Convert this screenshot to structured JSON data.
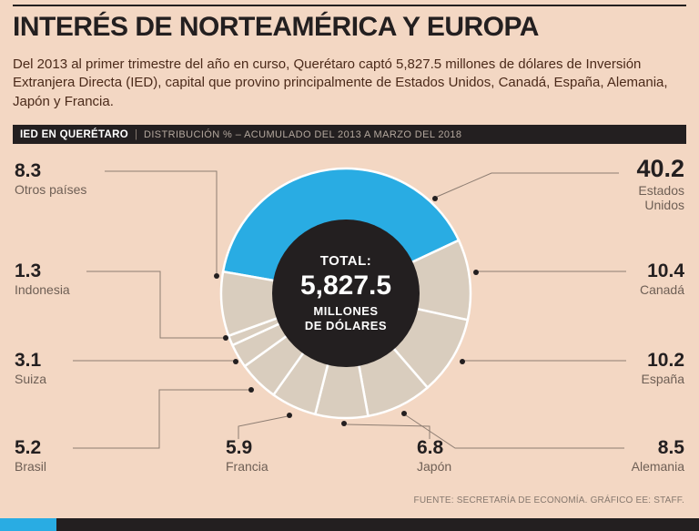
{
  "page": {
    "title": "INTERÉS DE NORTEAMÉRICA Y EUROPA",
    "intro": "Del 2013 al primer trimestre del año en curso, Querétaro captó 5,827.5 millones de dólares de Inversión Extranjera Directa (IED), capital que provino principalmente de Estados Unidos, Canadá, España, Alemania, Japón y Francia.",
    "source": "FUENTE: SECRETARÍA DE ECONOMÍA. GRÁFICO EE: STAFF."
  },
  "header_bar": {
    "label": "IED EN QUERÉTARO",
    "separator": "|",
    "subtitle": "DISTRIBUCIÓN % – ACUMULADO DEL 2013 A MARZO DEL 2018"
  },
  "chart_data": {
    "type": "pie",
    "title": "IED EN QUERÉTARO — DISTRIBUCIÓN % ACUMULADO DEL 2013 A MARZO DEL 2018",
    "unit": "%",
    "start_angle_deg": 280,
    "center": {
      "label": "TOTAL:",
      "value": "5,827.5",
      "unit_line1": "MILLONES",
      "unit_line2": "DE DÓLARES"
    },
    "colors": {
      "highlight": "#29ace3",
      "base": "#d9cdbe",
      "center_bg": "#231f20",
      "background": "#f3d7c3"
    },
    "series": [
      {
        "name": "Estados Unidos",
        "value": 40.2,
        "highlight": true
      },
      {
        "name": "Canadá",
        "value": 10.4
      },
      {
        "name": "España",
        "value": 10.2
      },
      {
        "name": "Alemania",
        "value": 8.5
      },
      {
        "name": "Japón",
        "value": 6.8
      },
      {
        "name": "Francia",
        "value": 5.9
      },
      {
        "name": "Brasil",
        "value": 5.2
      },
      {
        "name": "Suiza",
        "value": 3.1
      },
      {
        "name": "Indonesia",
        "value": 1.3
      },
      {
        "name": "Otros países",
        "value": 8.3
      }
    ]
  }
}
